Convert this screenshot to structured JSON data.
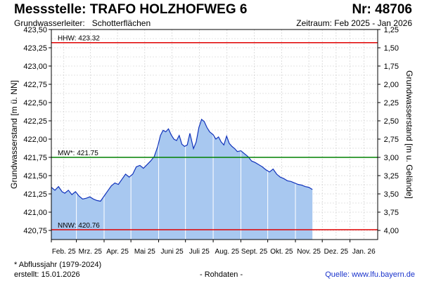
{
  "header": {
    "title": "Messstelle: TRAFO HOLZHOFWEG 6",
    "number": "Nr: 48706",
    "aquifer_label": "Grundwasserleiter:",
    "aquifer_value": "Schotterflächen",
    "period": "Zeitraum: Feb 2025 - Jan 2026"
  },
  "footer": {
    "note": "* Abflussjahr (1979-2024)",
    "created": "erstellt:  15.01.2026",
    "raw": "- Rohdaten -",
    "source": "Quelle:  www.lfu.bayern.de"
  },
  "colors": {
    "fill": "#a8c8f0",
    "line": "#1133bb",
    "hhw_nnw": "#e00000",
    "mw": "#008000",
    "grid": "#c8c8c8",
    "month_line": "#ffffff"
  },
  "chart_data": {
    "type": "area",
    "ylabel": "Grundwasserstand [m ü. NN]",
    "y2label": "Grundwasserstand [m u. Gelände]",
    "ylim": [
      420.625,
      423.5
    ],
    "yticks": [
      420.75,
      421.0,
      421.25,
      421.5,
      421.75,
      422.0,
      422.25,
      422.5,
      422.75,
      423.0,
      423.25,
      423.5
    ],
    "ytick_labels": [
      "420,75",
      "421,00",
      "421,25",
      "421,50",
      "421,75",
      "422,00",
      "422,25",
      "422,50",
      "422,75",
      "423,00",
      "423,25",
      "423,50"
    ],
    "y2ticks": [
      1.25,
      1.5,
      1.75,
      2.0,
      2.25,
      2.5,
      2.75,
      3.0,
      3.25,
      3.5,
      3.75,
      4.0
    ],
    "y2tick_labels": [
      "1,25",
      "1,50",
      "1,75",
      "2,00",
      "2,25",
      "2,50",
      "2,75",
      "3,00",
      "3,25",
      "3,50",
      "3,75",
      "4,00"
    ],
    "y2_reference": 424.75,
    "x_months": [
      "Feb. 25",
      "Mrz. 25",
      "Apr. 25",
      "Mai 25",
      "Juni 25",
      "Juli 25",
      "Aug. 25",
      "Sept. 25",
      "Okt. 25",
      "Nov. 25",
      "Dez. 25",
      "Jan. 26"
    ],
    "xlim": [
      "2025-02-01",
      "2026-02-01"
    ],
    "grid": true,
    "reference_lines": [
      {
        "label": "HHW: 423.32",
        "value": 423.32,
        "kind": "hhw"
      },
      {
        "label": "MW*: 421.75",
        "value": 421.75,
        "kind": "mw"
      },
      {
        "label": "NNW: 420.76",
        "value": 420.76,
        "kind": "nnw"
      }
    ],
    "series": [
      {
        "dates": [
          "2025-02-01",
          "2025-02-05",
          "2025-02-09",
          "2025-02-13",
          "2025-02-16",
          "2025-02-20",
          "2025-02-24",
          "2025-02-28",
          "2025-03-04",
          "2025-03-08",
          "2025-03-12",
          "2025-03-16",
          "2025-03-20",
          "2025-03-24",
          "2025-03-28",
          "2025-04-01",
          "2025-04-05",
          "2025-04-09",
          "2025-04-13",
          "2025-04-17",
          "2025-04-21",
          "2025-04-25",
          "2025-04-29",
          "2025-05-03",
          "2025-05-07",
          "2025-05-11",
          "2025-05-15",
          "2025-05-19",
          "2025-05-23",
          "2025-05-27",
          "2025-05-31",
          "2025-06-03",
          "2025-06-06",
          "2025-06-09",
          "2025-06-12",
          "2025-06-15",
          "2025-06-18",
          "2025-06-21",
          "2025-06-24",
          "2025-06-27",
          "2025-06-30",
          "2025-07-03",
          "2025-07-06",
          "2025-07-10",
          "2025-07-13",
          "2025-07-16",
          "2025-07-19",
          "2025-07-22",
          "2025-07-25",
          "2025-07-28",
          "2025-08-01",
          "2025-08-04",
          "2025-08-07",
          "2025-08-10",
          "2025-08-13",
          "2025-08-16",
          "2025-08-19",
          "2025-08-22",
          "2025-08-25",
          "2025-08-28",
          "2025-09-01",
          "2025-09-05",
          "2025-09-09",
          "2025-09-13",
          "2025-09-17",
          "2025-09-21",
          "2025-09-25",
          "2025-09-29",
          "2025-10-03",
          "2025-10-07",
          "2025-10-11",
          "2025-10-15",
          "2025-10-19",
          "2025-10-23",
          "2025-10-27",
          "2025-10-31",
          "2025-11-04",
          "2025-11-08",
          "2025-11-12",
          "2025-11-16",
          "2025-11-20"
        ],
        "values": [
          421.34,
          421.3,
          421.35,
          421.28,
          421.26,
          421.3,
          421.24,
          421.28,
          421.22,
          421.18,
          421.19,
          421.21,
          421.18,
          421.16,
          421.15,
          421.22,
          421.29,
          421.36,
          421.4,
          421.38,
          421.45,
          421.52,
          421.48,
          421.52,
          421.62,
          421.64,
          421.6,
          421.65,
          421.7,
          421.76,
          421.9,
          422.05,
          422.12,
          422.1,
          422.14,
          422.06,
          422.0,
          421.98,
          422.05,
          421.93,
          421.9,
          421.92,
          422.08,
          421.87,
          421.96,
          422.16,
          422.27,
          422.24,
          422.16,
          422.1,
          422.06,
          422.0,
          422.03,
          421.96,
          421.92,
          422.04,
          421.94,
          421.9,
          421.87,
          421.83,
          421.84,
          421.8,
          421.76,
          421.7,
          421.68,
          421.65,
          421.62,
          421.58,
          421.55,
          421.59,
          421.52,
          421.48,
          421.46,
          421.43,
          421.42,
          421.4,
          421.38,
          421.37,
          421.35,
          421.34,
          421.31
        ]
      }
    ]
  }
}
